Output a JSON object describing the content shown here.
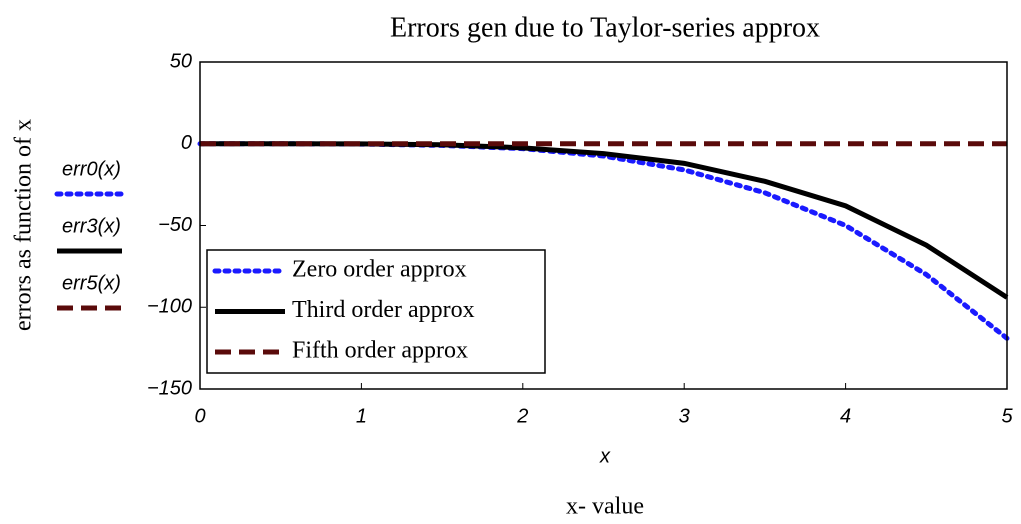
{
  "chart_data": {
    "type": "line",
    "title": "Errors gen due to Taylor-series approx",
    "y_label": "errors as function of x",
    "x_var_label": "x",
    "x_label": "x- value",
    "x": [
      0,
      0.5,
      1,
      1.5,
      2,
      2.5,
      3,
      3.5,
      4,
      4.5,
      5
    ],
    "series": [
      {
        "name": "Zero order approx",
        "expr": "err0(x)",
        "color": "#1a1aff",
        "dash": "dotted",
        "values": [
          0,
          0,
          -0.2,
          -1,
          -3,
          -7.5,
          -16,
          -30,
          -50,
          -80,
          -119
        ]
      },
      {
        "name": "Third order approx",
        "expr": "err3(x)",
        "color": "#000000",
        "dash": "solid",
        "values": [
          0,
          0,
          -0.1,
          -0.6,
          -2.5,
          -6,
          -12,
          -23,
          -38,
          -62,
          -94
        ]
      },
      {
        "name": "Fifth order approx",
        "expr": "err5(x)",
        "color": "#5a0a0a",
        "dash": "dashed",
        "values": [
          0,
          0,
          0,
          0,
          0,
          0,
          0,
          0,
          0,
          0,
          0
        ]
      }
    ],
    "xlim": [
      0,
      5
    ],
    "xticks": [
      0,
      1,
      2,
      3,
      4,
      5
    ],
    "ylim": [
      -150,
      50
    ],
    "yticks": [
      50,
      0,
      {
        "value": -50,
        "label": "−50"
      },
      {
        "value": -100,
        "label": "−100"
      },
      {
        "value": -150,
        "label": "−150"
      }
    ],
    "grid": false,
    "legend": "lower-left"
  }
}
